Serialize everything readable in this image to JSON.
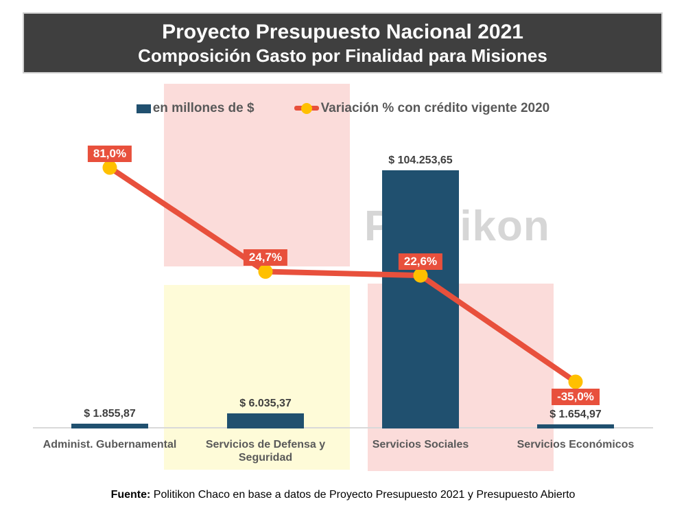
{
  "title": {
    "line1": "Proyecto Presupuesto Nacional 2021",
    "line2": "Composición Gasto por Finalidad para Misiones"
  },
  "legend": {
    "bar_label": "en millones de $",
    "line_label": "Variación % con crédito vigente 2020"
  },
  "watermark": "Politikon",
  "footer": {
    "label": "Fuente:",
    "text": " Politikon Chaco en base a datos de Proyecto Presupuesto 2021 y Presupuesto Abierto"
  },
  "colors": {
    "bar": "#20506F",
    "line": "#E8503C",
    "marker": "#FFC000",
    "title_bg": "#3F3F3F",
    "pink_bg": "#FBDCDA",
    "yellow_bg": "#FEFBD8",
    "gray_text": "#595959",
    "watermark_gray": "#D6D6D6",
    "axis_line": "#D9D9D9"
  },
  "chart_data": {
    "type": "bar",
    "subtype": "combo-bar-line",
    "title": "Proyecto Presupuesto Nacional 2021 — Composición Gasto por Finalidad para Misiones",
    "categories": [
      "Administ. Gubernamental",
      "Servicios de Defensa y Seguridad",
      "Servicios Sociales",
      "Servicios Económicos"
    ],
    "series": [
      {
        "name": "en millones de $",
        "type": "bar",
        "values": [
          1855.87,
          6035.37,
          104253.65,
          1654.97
        ],
        "labels": [
          "$ 1.855,87",
          "$ 6.035,37",
          "$ 104.253,65",
          "$ 1.654,97"
        ],
        "color": "#20506F"
      },
      {
        "name": "Variación % con crédito vigente 2020",
        "type": "line",
        "values": [
          81.0,
          24.7,
          22.6,
          -35.0
        ],
        "labels": [
          "81,0%",
          "24,7%",
          "22,6%",
          "-35,0%"
        ],
        "color": "#E8503C",
        "marker_color": "#FFC000"
      }
    ],
    "bar_axis": {
      "min": 0,
      "max": 104253.65,
      "visible": false
    },
    "line_axis": {
      "visible": false
    },
    "grid": false,
    "legend_position": "top",
    "background_highlights": [
      {
        "color": "#FBDCDA",
        "area": "upper band over columns 1-2"
      },
      {
        "color": "#FEFBD8",
        "area": "lower band over column 2"
      },
      {
        "color": "#FBDCDA",
        "area": "lower band over columns 3-4"
      }
    ]
  }
}
